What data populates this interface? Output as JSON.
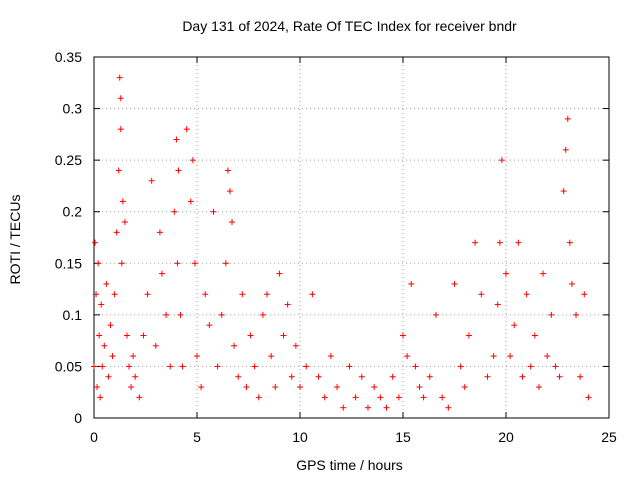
{
  "chart_data": {
    "type": "scatter",
    "title": "Day 131 of 2024, Rate Of TEC Index for receiver bndr",
    "xlabel": "GPS time / hours",
    "ylabel": "ROTI / TECUs",
    "xlim": [
      0,
      25
    ],
    "ylim": [
      0,
      0.35
    ],
    "xticks": [
      0,
      5,
      10,
      15,
      20,
      25
    ],
    "xtick_labels": [
      "0",
      "5",
      "10",
      "15",
      "20",
      "25"
    ],
    "yticks": [
      0,
      0.05,
      0.1,
      0.15,
      0.2,
      0.25,
      0.3,
      0.35
    ],
    "ytick_labels": [
      "0",
      "0.05",
      "0.1",
      "0.15",
      "0.2",
      "0.25",
      "0.3",
      "0.35"
    ],
    "grid": true,
    "marker": "+",
    "color": "#ff0000",
    "series": [
      {
        "x": [
          0.0,
          0.05,
          0.1,
          0.15,
          0.2,
          0.25,
          0.3,
          0.35,
          0.4,
          0.5,
          0.6,
          0.7,
          0.8,
          0.9,
          1.0,
          1.1,
          1.2,
          1.25,
          1.3,
          1.3,
          1.35,
          1.4,
          1.5,
          1.6,
          1.7,
          1.8,
          1.9,
          2.0,
          2.2,
          2.4,
          2.6,
          2.8,
          3.0,
          3.2,
          3.3,
          3.5,
          3.7,
          3.9,
          4.0,
          4.05,
          4.1,
          4.2,
          4.3,
          4.5,
          4.7,
          4.8,
          4.9,
          5.0,
          5.2,
          5.4,
          5.6,
          5.8,
          6.0,
          6.2,
          6.4,
          6.5,
          6.6,
          6.7,
          6.8,
          7.0,
          7.2,
          7.4,
          7.6,
          7.8,
          8.0,
          8.2,
          8.4,
          8.6,
          8.8,
          9.0,
          9.2,
          9.4,
          9.6,
          9.8,
          10.0,
          10.3,
          10.6,
          10.9,
          11.2,
          11.5,
          11.8,
          12.1,
          12.4,
          12.7,
          13.0,
          13.3,
          13.6,
          13.9,
          14.2,
          14.5,
          14.8,
          15.0,
          15.2,
          15.4,
          15.6,
          15.8,
          16.0,
          16.3,
          16.6,
          16.9,
          17.2,
          17.5,
          17.8,
          18.0,
          18.2,
          18.5,
          18.8,
          19.1,
          19.4,
          19.6,
          19.7,
          19.8,
          20.0,
          20.2,
          20.4,
          20.6,
          20.8,
          21.0,
          21.2,
          21.4,
          21.6,
          21.8,
          22.0,
          22.2,
          22.4,
          22.6,
          22.8,
          22.9,
          23.0,
          23.1,
          23.2,
          23.4,
          23.6,
          23.8,
          24.0
        ],
        "y": [
          0.05,
          0.17,
          0.12,
          0.03,
          0.15,
          0.08,
          0.02,
          0.11,
          0.05,
          0.07,
          0.13,
          0.04,
          0.09,
          0.06,
          0.12,
          0.18,
          0.24,
          0.33,
          0.31,
          0.28,
          0.15,
          0.21,
          0.19,
          0.08,
          0.05,
          0.03,
          0.06,
          0.04,
          0.02,
          0.08,
          0.12,
          0.23,
          0.07,
          0.18,
          0.14,
          0.1,
          0.05,
          0.2,
          0.27,
          0.15,
          0.24,
          0.1,
          0.05,
          0.28,
          0.21,
          0.25,
          0.15,
          0.06,
          0.03,
          0.12,
          0.09,
          0.2,
          0.05,
          0.1,
          0.15,
          0.24,
          0.22,
          0.19,
          0.07,
          0.04,
          0.12,
          0.03,
          0.08,
          0.05,
          0.02,
          0.1,
          0.12,
          0.06,
          0.03,
          0.14,
          0.08,
          0.11,
          0.04,
          0.07,
          0.03,
          0.05,
          0.12,
          0.04,
          0.02,
          0.06,
          0.03,
          0.01,
          0.05,
          0.02,
          0.04,
          0.01,
          0.03,
          0.02,
          0.01,
          0.04,
          0.02,
          0.08,
          0.06,
          0.13,
          0.05,
          0.03,
          0.02,
          0.04,
          0.1,
          0.02,
          0.01,
          0.13,
          0.05,
          0.03,
          0.08,
          0.17,
          0.12,
          0.04,
          0.06,
          0.11,
          0.17,
          0.25,
          0.14,
          0.06,
          0.09,
          0.17,
          0.04,
          0.12,
          0.05,
          0.08,
          0.03,
          0.14,
          0.06,
          0.1,
          0.05,
          0.04,
          0.22,
          0.26,
          0.29,
          0.17,
          0.13,
          0.1,
          0.04,
          0.12,
          0.02
        ]
      }
    ]
  }
}
